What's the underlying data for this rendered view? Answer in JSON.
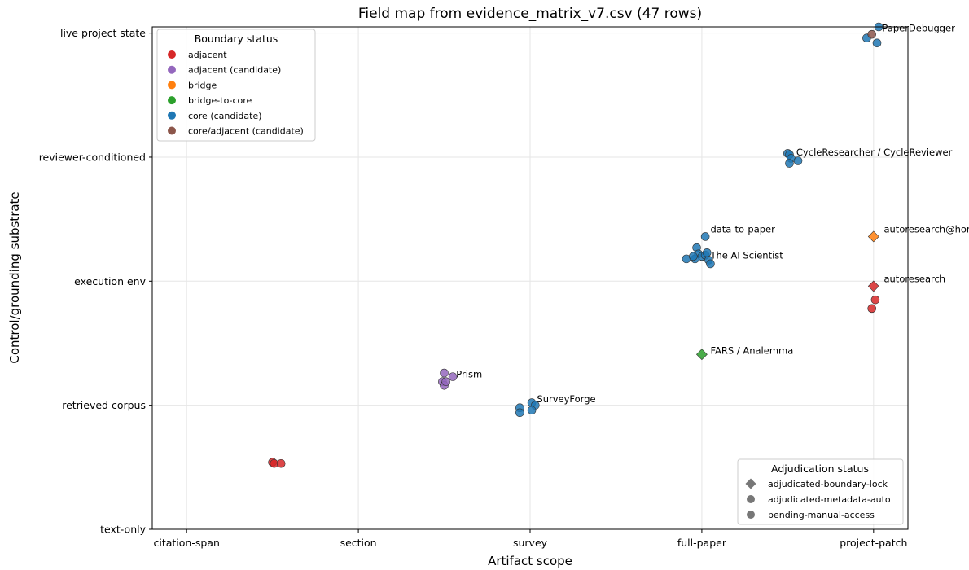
{
  "chart_data": {
    "type": "scatter",
    "title": "Field map from evidence_matrix_v7.csv (47 rows)",
    "xlabel": "Artifact scope",
    "ylabel": "Control/grounding substrate",
    "x_categories": [
      "citation-span",
      "section",
      "survey",
      "full-paper",
      "project-patch"
    ],
    "y_categories": [
      "text-only",
      "retrieved corpus",
      "execution env",
      "reviewer-conditioned",
      "live project state"
    ],
    "xlim": [
      -0.2,
      4.2
    ],
    "ylim": [
      0,
      4.05
    ],
    "grid": true,
    "color_legend": {
      "title": "Boundary status",
      "placement": "upper-left",
      "entries": [
        {
          "name": "adjacent",
          "color": "#d62728"
        },
        {
          "name": "adjacent (candidate)",
          "color": "#9467bd"
        },
        {
          "name": "bridge",
          "color": "#ff7f0e"
        },
        {
          "name": "bridge-to-core",
          "color": "#2ca02c"
        },
        {
          "name": "core (candidate)",
          "color": "#1f77b4"
        },
        {
          "name": "core/adjacent (candidate)",
          "color": "#8c564b"
        }
      ]
    },
    "marker_legend": {
      "title": "Adjudication status",
      "placement": "lower-right",
      "entries": [
        {
          "name": "adjudicated-boundary-lock",
          "marker": "diamond"
        },
        {
          "name": "adjudicated-metadata-auto",
          "marker": "circle"
        },
        {
          "name": "pending-manual-access",
          "marker": "circle"
        }
      ]
    },
    "points": [
      {
        "x": 0.5,
        "y": 0.54,
        "status": "adjacent",
        "marker": "circle"
      },
      {
        "x": 0.51,
        "y": 0.53,
        "status": "adjacent",
        "marker": "circle"
      },
      {
        "x": 0.55,
        "y": 0.53,
        "status": "adjacent",
        "marker": "circle"
      },
      {
        "x": 1.5,
        "y": 1.26,
        "status": "adjacent (candidate)",
        "marker": "circle"
      },
      {
        "x": 1.49,
        "y": 1.19,
        "status": "adjacent (candidate)",
        "marker": "circle"
      },
      {
        "x": 1.5,
        "y": 1.16,
        "status": "adjacent (candidate)",
        "marker": "circle"
      },
      {
        "x": 1.51,
        "y": 1.19,
        "status": "adjacent (candidate)",
        "marker": "circle"
      },
      {
        "x": 1.55,
        "y": 1.23,
        "status": "adjacent (candidate)",
        "marker": "circle"
      },
      {
        "x": 1.94,
        "y": 0.98,
        "status": "core (candidate)",
        "marker": "circle"
      },
      {
        "x": 1.94,
        "y": 0.94,
        "status": "core (candidate)",
        "marker": "circle"
      },
      {
        "x": 2.01,
        "y": 1.02,
        "status": "core (candidate)",
        "marker": "circle"
      },
      {
        "x": 2.03,
        "y": 1.0,
        "status": "core (candidate)",
        "marker": "circle"
      },
      {
        "x": 2.01,
        "y": 0.96,
        "status": "core (candidate)",
        "marker": "circle"
      },
      {
        "x": 3.0,
        "y": 1.41,
        "status": "bridge-to-core",
        "marker": "diamond"
      },
      {
        "x": 3.02,
        "y": 2.36,
        "status": "core (candidate)",
        "marker": "circle"
      },
      {
        "x": 2.97,
        "y": 2.27,
        "status": "core (candidate)",
        "marker": "circle"
      },
      {
        "x": 2.98,
        "y": 2.22,
        "status": "core (candidate)",
        "marker": "circle"
      },
      {
        "x": 3.0,
        "y": 2.2,
        "status": "core (candidate)",
        "marker": "circle"
      },
      {
        "x": 3.02,
        "y": 2.21,
        "status": "core (candidate)",
        "marker": "circle"
      },
      {
        "x": 2.96,
        "y": 2.18,
        "status": "core (candidate)",
        "marker": "circle"
      },
      {
        "x": 2.91,
        "y": 2.18,
        "status": "core (candidate)",
        "marker": "circle"
      },
      {
        "x": 3.04,
        "y": 2.17,
        "status": "core (candidate)",
        "marker": "circle"
      },
      {
        "x": 3.05,
        "y": 2.14,
        "status": "core (candidate)",
        "marker": "circle"
      },
      {
        "x": 2.95,
        "y": 2.2,
        "status": "core (candidate)",
        "marker": "circle"
      },
      {
        "x": 3.03,
        "y": 2.23,
        "status": "core (candidate)",
        "marker": "circle"
      },
      {
        "x": 3.5,
        "y": 3.03,
        "status": "core (candidate)",
        "marker": "circle"
      },
      {
        "x": 3.51,
        "y": 3.02,
        "status": "core (candidate)",
        "marker": "circle"
      },
      {
        "x": 3.52,
        "y": 2.99,
        "status": "core (candidate)",
        "marker": "circle"
      },
      {
        "x": 3.51,
        "y": 2.95,
        "status": "core (candidate)",
        "marker": "circle"
      },
      {
        "x": 3.56,
        "y": 2.97,
        "status": "core (candidate)",
        "marker": "circle"
      },
      {
        "x": 3.96,
        "y": 3.96,
        "status": "core (candidate)",
        "marker": "circle"
      },
      {
        "x": 4.03,
        "y": 4.05,
        "status": "core (candidate)",
        "marker": "circle"
      },
      {
        "x": 4.02,
        "y": 3.92,
        "status": "core (candidate)",
        "marker": "circle"
      },
      {
        "x": 3.99,
        "y": 3.99,
        "status": "core/adjacent (candidate)",
        "marker": "circle"
      },
      {
        "x": 4.0,
        "y": 2.36,
        "status": "bridge",
        "marker": "diamond"
      },
      {
        "x": 4.0,
        "y": 1.96,
        "status": "adjacent",
        "marker": "diamond"
      },
      {
        "x": 4.01,
        "y": 1.85,
        "status": "adjacent",
        "marker": "circle"
      },
      {
        "x": 3.99,
        "y": 1.78,
        "status": "adjacent",
        "marker": "circle"
      }
    ],
    "annotations": [
      {
        "text": "PaperDebugger",
        "x": 4.05,
        "y": 4.04
      },
      {
        "text": "CycleResearcher / CycleReviewer",
        "x": 3.55,
        "y": 3.04
      },
      {
        "text": "data-to-paper",
        "x": 3.05,
        "y": 2.42
      },
      {
        "text": "The AI Scientist",
        "x": 3.05,
        "y": 2.21
      },
      {
        "text": "autoresearch@home",
        "x": 4.06,
        "y": 2.42
      },
      {
        "text": "autoresearch",
        "x": 4.06,
        "y": 2.02
      },
      {
        "text": "FARS / Analemma",
        "x": 3.05,
        "y": 1.44
      },
      {
        "text": "Prism",
        "x": 1.57,
        "y": 1.25
      },
      {
        "text": "SurveyForge",
        "x": 2.04,
        "y": 1.05
      }
    ]
  }
}
